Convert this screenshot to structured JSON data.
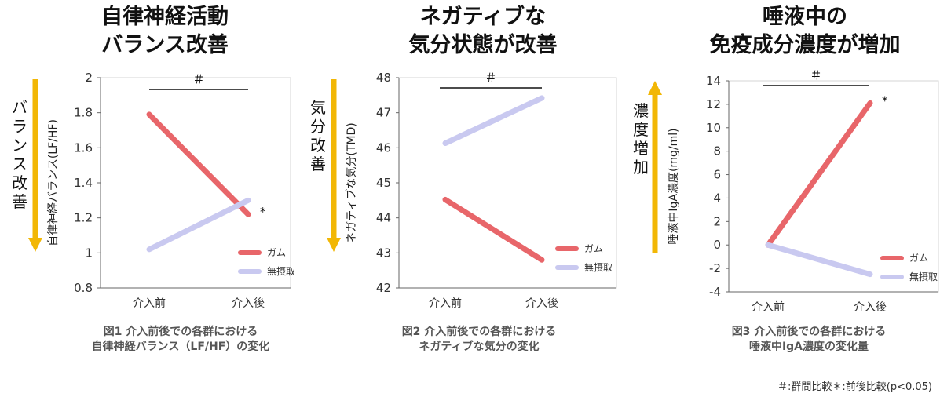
{
  "chart_data": [
    {
      "type": "line",
      "title": "自律神経活動 バランス改善",
      "title_lines": [
        "自律神経活動",
        "バランス改善"
      ],
      "categories": [
        "介入前",
        "介入後"
      ],
      "series": [
        {
          "name": "ガム",
          "values": [
            1.79,
            1.22
          ],
          "color": "#e8666a"
        },
        {
          "name": "無摂取",
          "values": [
            1.02,
            1.3
          ],
          "color": "#c9c9f0"
        }
      ],
      "ylabel": "自律神経バランス(LF/HF)",
      "ylim": [
        0.8,
        2
      ],
      "yticks": [
        "0.8",
        "1",
        "1.2",
        "1.4",
        "1.6",
        "1.8",
        "2"
      ],
      "arrow_label": "バランス改善",
      "arrow_color": "#f2b705",
      "arrow_direction": "down",
      "group_mark": "＃",
      "post_mark": "*",
      "caption_lines": [
        "図1 介入前後での各群における",
        "自律神経バランス（LF/HF）の変化"
      ]
    },
    {
      "type": "line",
      "title": "ネガティブな 気分状態が改善",
      "title_lines": [
        "ネガティブな",
        "気分状態が改善"
      ],
      "categories": [
        "介入前",
        "介入後"
      ],
      "series": [
        {
          "name": "ガム",
          "values": [
            44.52,
            42.8
          ],
          "color": "#e8666a"
        },
        {
          "name": "無摂取",
          "values": [
            46.13,
            47.42
          ],
          "color": "#c9c9f0"
        }
      ],
      "ylabel": "ネガティブな気分(TMD)",
      "ylim": [
        42,
        48
      ],
      "yticks": [
        "42",
        "43",
        "44",
        "45",
        "46",
        "47",
        "48"
      ],
      "arrow_label": "気分改善",
      "arrow_color": "#f2b705",
      "arrow_direction": "down",
      "group_mark": "＃",
      "post_mark": "",
      "caption_lines": [
        "図2 介入前後での各群における",
        "ネガティブな気分の変化"
      ]
    },
    {
      "type": "line",
      "title": "唾液中の 免疫成分濃度が増加",
      "title_lines": [
        "唾液中の",
        "免疫成分濃度が増加"
      ],
      "categories": [
        "介入前",
        "介入後"
      ],
      "series": [
        {
          "name": "ガム",
          "values": [
            0,
            12.1
          ],
          "color": "#e8666a"
        },
        {
          "name": "無摂取",
          "values": [
            0,
            -2.5
          ],
          "color": "#c9c9f0"
        }
      ],
      "ylabel": "唾液中IgA濃度(mg/ml)",
      "ylim": [
        -4,
        14
      ],
      "yticks": [
        "-4",
        "-2",
        "0",
        "2",
        "4",
        "6",
        "8",
        "10",
        "12",
        "14"
      ],
      "arrow_label": "濃度増加",
      "arrow_color": "#f2b705",
      "arrow_direction": "up",
      "group_mark": "＃",
      "post_mark": "*",
      "caption_lines": [
        "図3 介入前後での各群における",
        "唾液中IgA濃度の変化量"
      ]
    }
  ],
  "footnote": "＃:群間比較＊:前後比較(p<0.05)"
}
